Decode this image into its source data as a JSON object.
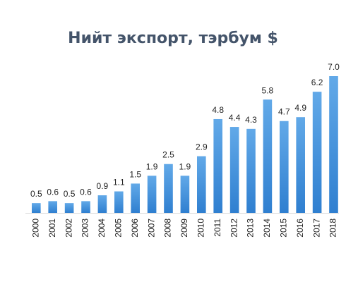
{
  "chart_data": {
    "type": "bar",
    "title": "Нийт экспорт, тэрбум $",
    "xlabel": "",
    "ylabel": "",
    "categories": [
      "2000",
      "2001",
      "2002",
      "2003",
      "2004",
      "2005",
      "2006",
      "2007",
      "2008",
      "2009",
      "2010",
      "2011",
      "2012",
      "2013",
      "2014",
      "2015",
      "2016",
      "2017",
      "2018"
    ],
    "values": [
      0.5,
      0.6,
      0.5,
      0.6,
      0.9,
      1.1,
      1.5,
      1.9,
      2.5,
      1.9,
      2.9,
      4.8,
      4.4,
      4.3,
      5.8,
      4.7,
      4.9,
      6.2,
      7.0
    ],
    "value_labels": [
      "0.5",
      "0.6",
      "0.5",
      "0.6",
      "0.9",
      "1.1",
      "1.5",
      "1.9",
      "2.5",
      "1.9",
      "2.9",
      "4.8",
      "4.4",
      "4.3",
      "5.8",
      "4.7",
      "4.9",
      "6.2",
      "7.0"
    ],
    "ylim": [
      0,
      7.0
    ],
    "grid": false,
    "legend": "none",
    "colors": {
      "bar_top": "#62a9e8",
      "bar_bottom": "#2f7fd0",
      "title": "#44546a",
      "label": "#222222",
      "axis": "#d9d9d9"
    }
  }
}
